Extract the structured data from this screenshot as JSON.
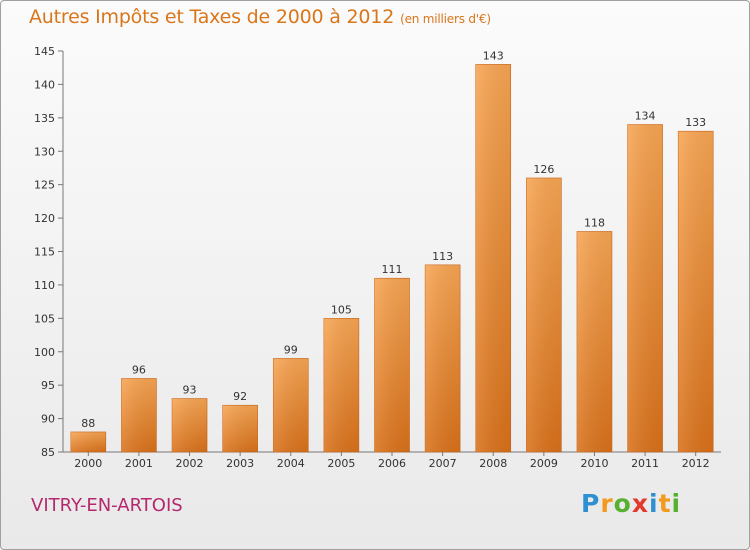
{
  "chart_data": {
    "type": "bar",
    "title": "Autres Impôts et Taxes de 2000 à 2012",
    "subtitle": "(en milliers d'€)",
    "categories": [
      "2000",
      "2001",
      "2002",
      "2003",
      "2004",
      "2005",
      "2006",
      "2007",
      "2008",
      "2009",
      "2010",
      "2011",
      "2012"
    ],
    "values": [
      88,
      96,
      93,
      92,
      99,
      105,
      111,
      113,
      143,
      126,
      118,
      134,
      133
    ],
    "ylim": [
      85,
      145
    ],
    "yticks": [
      85,
      90,
      95,
      100,
      105,
      110,
      115,
      120,
      125,
      130,
      135,
      140,
      145
    ],
    "xlabel": "",
    "ylabel": "",
    "grid": false,
    "bar_color": "#f0923a"
  },
  "location": "VITRY-EN-ARTOIS",
  "logo": {
    "letters": [
      "P",
      "r",
      "o",
      "x",
      "i",
      "t",
      "i"
    ],
    "colors": [
      "#2e8fd1",
      "#f39a1e",
      "#58b030",
      "#e2392a",
      "#2e8fd1",
      "#f39a1e",
      "#58b030"
    ]
  }
}
